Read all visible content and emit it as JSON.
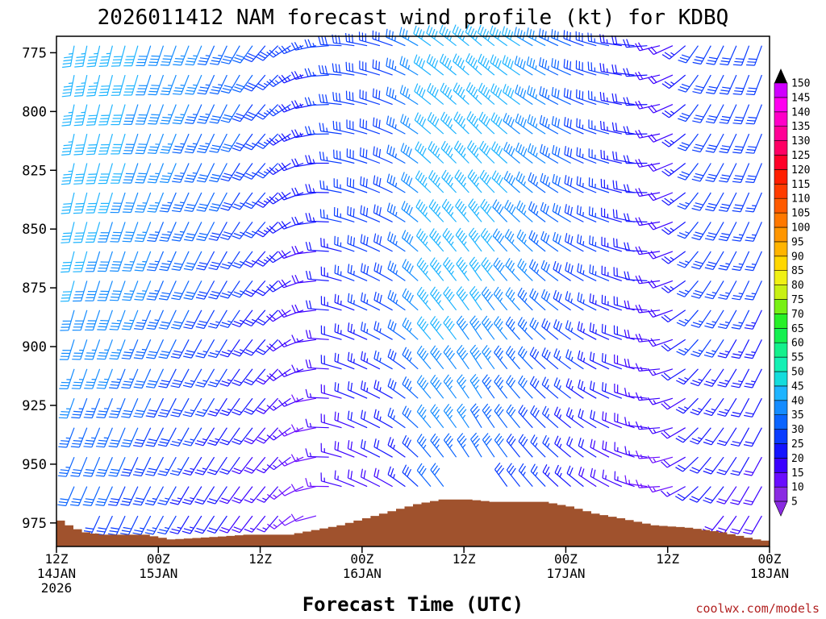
{
  "chart_data": {
    "type": "wind-barb-time-height",
    "title": "2026011412 NAM forecast wind profile (kt) for KDBQ",
    "xlabel": "Forecast Time (UTC)",
    "ylabel": "",
    "credit": "coolwx.com/models",
    "y_axis": {
      "unit": "hPa",
      "inverted": true,
      "range": [
        768,
        985
      ],
      "ticks": [
        "775",
        "800",
        "825",
        "850",
        "875",
        "900",
        "925",
        "950",
        "975"
      ]
    },
    "x_axis": {
      "range_hours": [
        0,
        84
      ],
      "ticks": [
        {
          "hour": 0,
          "lines": [
            "12Z",
            "14JAN",
            "2026"
          ]
        },
        {
          "hour": 12,
          "lines": [
            "00Z",
            "15JAN"
          ]
        },
        {
          "hour": 24,
          "lines": [
            "12Z",
            ""
          ]
        },
        {
          "hour": 36,
          "lines": [
            "00Z",
            "16JAN"
          ]
        },
        {
          "hour": 48,
          "lines": [
            "12Z",
            ""
          ]
        },
        {
          "hour": 60,
          "lines": [
            "00Z",
            "17JAN"
          ]
        },
        {
          "hour": 72,
          "lines": [
            "12Z",
            ""
          ]
        },
        {
          "hour": 84,
          "lines": [
            "00Z",
            "18JAN"
          ]
        }
      ]
    },
    "colorbar": {
      "unit": "kt",
      "labels": [
        "5",
        "10",
        "15",
        "20",
        "25",
        "30",
        "35",
        "40",
        "45",
        "50",
        "55",
        "60",
        "65",
        "70",
        "75",
        "80",
        "85",
        "90",
        "95",
        "100",
        "105",
        "110",
        "115",
        "120",
        "125",
        "130",
        "135",
        "140",
        "145",
        "150"
      ],
      "colors": [
        "#8a2be2",
        "#6a0dff",
        "#3b00ff",
        "#1414ff",
        "#0a3cff",
        "#0a64ff",
        "#148cff",
        "#1eb4ff",
        "#14dcdc",
        "#14f0b4",
        "#14f08c",
        "#14f050",
        "#28f028",
        "#78f014",
        "#c8f014",
        "#f0f014",
        "#ffd700",
        "#ffb400",
        "#ff9600",
        "#ff7800",
        "#ff5a00",
        "#ff3c00",
        "#ff1e00",
        "#ff0028",
        "#ff0064",
        "#ff0096",
        "#ff00c8",
        "#ff00f0",
        "#d000ff"
      ]
    },
    "surface_pressure": [
      {
        "hour": 0,
        "p": 974
      },
      {
        "hour": 1.5,
        "p": 977
      },
      {
        "hour": 3,
        "p": 979
      },
      {
        "hour": 5,
        "p": 980
      },
      {
        "hour": 10,
        "p": 980
      },
      {
        "hour": 13,
        "p": 982
      },
      {
        "hour": 18,
        "p": 981
      },
      {
        "hour": 22,
        "p": 980
      },
      {
        "hour": 27,
        "p": 980
      },
      {
        "hour": 30,
        "p": 978
      },
      {
        "hour": 33,
        "p": 976
      },
      {
        "hour": 36,
        "p": 973
      },
      {
        "hour": 39,
        "p": 970
      },
      {
        "hour": 42,
        "p": 967
      },
      {
        "hour": 45,
        "p": 965
      },
      {
        "hour": 48,
        "p": 965
      },
      {
        "hour": 51,
        "p": 966
      },
      {
        "hour": 57,
        "p": 966
      },
      {
        "hour": 60,
        "p": 968
      },
      {
        "hour": 63,
        "p": 971
      },
      {
        "hour": 66,
        "p": 973
      },
      {
        "hour": 70,
        "p": 976
      },
      {
        "hour": 74,
        "p": 977
      },
      {
        "hour": 78,
        "p": 979
      },
      {
        "hour": 82,
        "p": 982
      },
      {
        "hour": 84,
        "p": 983
      }
    ],
    "wind_keyframes": [
      {
        "hour": 0,
        "dir": [
          190,
          195,
          205
        ],
        "spd": [
          45,
          40,
          30
        ]
      },
      {
        "hour": 6,
        "dir": [
          195,
          200,
          205
        ],
        "spd": [
          42,
          38,
          28
        ]
      },
      {
        "hour": 12,
        "dir": [
          200,
          205,
          210
        ],
        "spd": [
          38,
          32,
          25
        ]
      },
      {
        "hour": 18,
        "dir": [
          205,
          210,
          215
        ],
        "spd": [
          34,
          28,
          20
        ]
      },
      {
        "hour": 24,
        "dir": [
          225,
          225,
          220
        ],
        "spd": [
          28,
          22,
          15
        ]
      },
      {
        "hour": 28,
        "dir": [
          255,
          260,
          250
        ],
        "spd": [
          25,
          18,
          10
        ]
      },
      {
        "hour": 32,
        "dir": [
          275,
          290,
          290
        ],
        "spd": [
          30,
          25,
          15
        ]
      },
      {
        "hour": 38,
        "dir": [
          290,
          300,
          300
        ],
        "spd": [
          30,
          30,
          18
        ]
      },
      {
        "hour": 42,
        "dir": [
          305,
          320,
          320
        ],
        "spd": [
          40,
          45,
          30
        ]
      },
      {
        "hour": 48,
        "dir": [
          310,
          325,
          330
        ],
        "spd": [
          45,
          42,
          30
        ]
      },
      {
        "hour": 54,
        "dir": [
          300,
          315,
          320
        ],
        "spd": [
          40,
          35,
          25
        ]
      },
      {
        "hour": 60,
        "dir": [
          290,
          300,
          310
        ],
        "spd": [
          30,
          28,
          20
        ]
      },
      {
        "hour": 66,
        "dir": [
          275,
          285,
          290
        ],
        "spd": [
          22,
          22,
          15
        ]
      },
      {
        "hour": 70,
        "dir": [
          250,
          255,
          260
        ],
        "spd": [
          18,
          18,
          12
        ]
      },
      {
        "hour": 74,
        "dir": [
          210,
          215,
          225
        ],
        "spd": [
          30,
          28,
          20
        ]
      },
      {
        "hour": 80,
        "dir": [
          200,
          205,
          210
        ],
        "spd": [
          30,
          26,
          18
        ]
      },
      {
        "hour": 84,
        "dir": [
          200,
          205,
          210
        ],
        "spd": [
          28,
          24,
          16
        ]
      }
    ],
    "wind_levels_hpa": [
      770,
      875,
      975
    ]
  }
}
